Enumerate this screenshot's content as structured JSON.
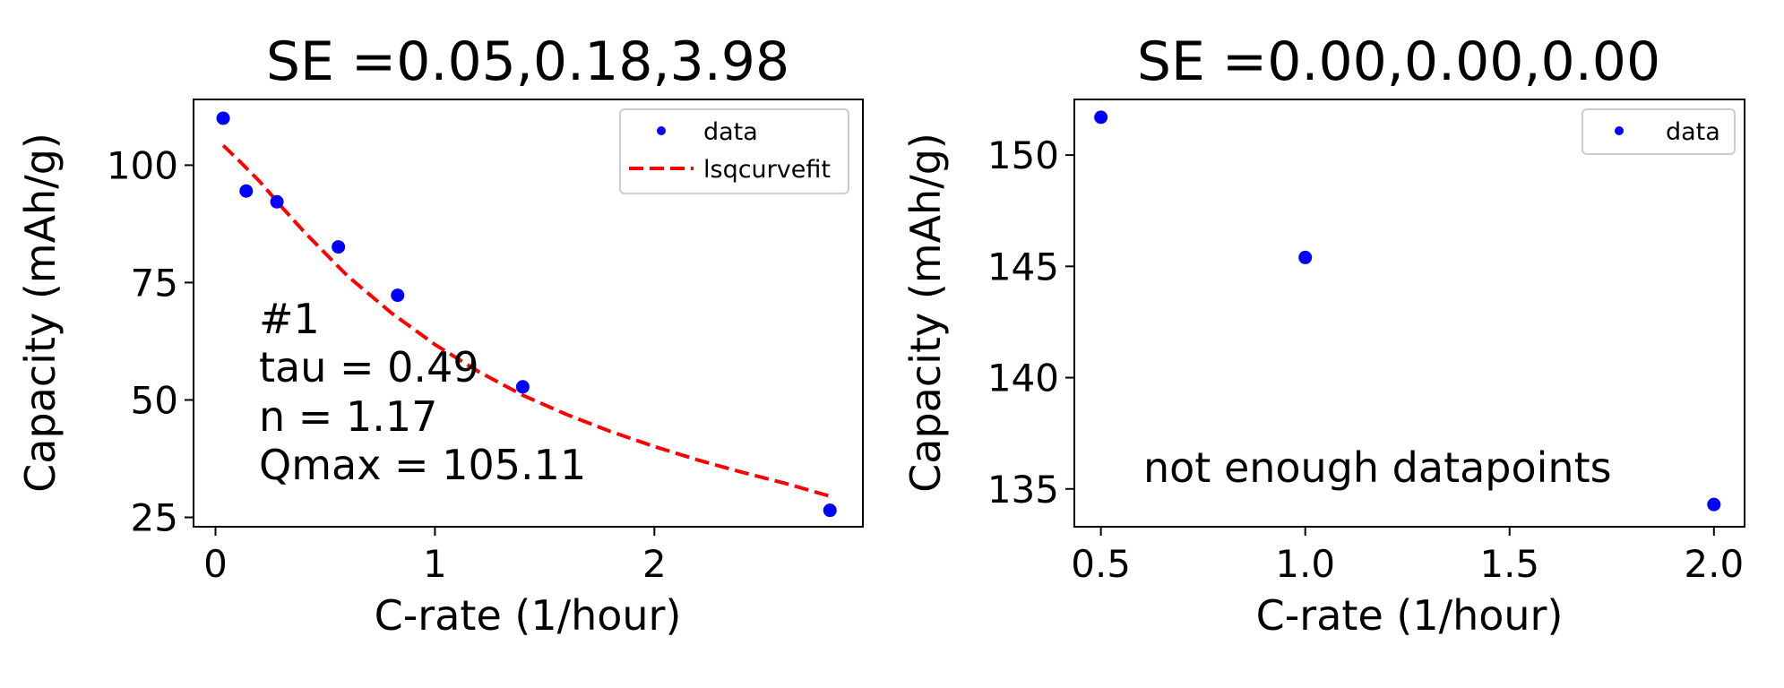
{
  "chart_data": [
    {
      "type": "scatter",
      "title": "SE =0.05,0.18,3.98",
      "xlabel": "C-rate (1/hour)",
      "ylabel": "Capacity (mAh/g)",
      "xlim": [
        -0.1,
        2.95
      ],
      "ylim": [
        23,
        114
      ],
      "xticks": [
        0,
        1,
        2
      ],
      "xtick_labels": [
        "0",
        "1",
        "2"
      ],
      "yticks": [
        25,
        50,
        75,
        100
      ],
      "ytick_labels": [
        "25",
        "50",
        "75",
        "100"
      ],
      "grid": false,
      "legend_position": "top-right",
      "series": [
        {
          "name": "data",
          "kind": "scatter",
          "color": "#0000ff",
          "x": [
            0.035,
            0.14,
            0.28,
            0.56,
            0.83,
            1.4,
            2.8
          ],
          "y": [
            110,
            94.5,
            92.2,
            82.6,
            72.3,
            52.8,
            26.5
          ]
        },
        {
          "name": "lsqcurvefit",
          "kind": "line",
          "style": "dashed",
          "color": "#ff0000",
          "x": [
            0.035,
            0.1,
            0.2,
            0.3,
            0.4,
            0.6,
            0.8,
            1.0,
            1.2,
            1.4,
            1.6,
            1.8,
            2.0,
            2.2,
            2.4,
            2.6,
            2.8
          ],
          "y": [
            104.2,
            101.3,
            96.6,
            91.2,
            86.0,
            76.5,
            68.6,
            61.8,
            56.0,
            51.0,
            46.9,
            43.3,
            40.1,
            37.2,
            34.6,
            32.2,
            29.5
          ]
        }
      ],
      "annotation": [
        "#1",
        "tau = 0.49",
        "n = 1.17",
        "Qmax = 105.11"
      ]
    },
    {
      "type": "scatter",
      "title": "SE =0.00,0.00,0.00",
      "xlabel": "C-rate (1/hour)",
      "ylabel": "Capacity (mAh/g)",
      "xlim": [
        0.435,
        2.075
      ],
      "ylim": [
        133.3,
        152.5
      ],
      "xticks": [
        0.5,
        1.0,
        1.5,
        2.0
      ],
      "xtick_labels": [
        "0.5",
        "1.0",
        "1.5",
        "2.0"
      ],
      "yticks": [
        135,
        140,
        145,
        150
      ],
      "ytick_labels": [
        "135",
        "140",
        "145",
        "150"
      ],
      "grid": false,
      "legend_position": "top-right",
      "series": [
        {
          "name": "data",
          "kind": "scatter",
          "color": "#0000ff",
          "x": [
            0.5,
            1.0,
            2.0
          ],
          "y": [
            151.7,
            145.4,
            134.3
          ]
        }
      ],
      "annotation": [
        "not enough datapoints"
      ]
    }
  ]
}
